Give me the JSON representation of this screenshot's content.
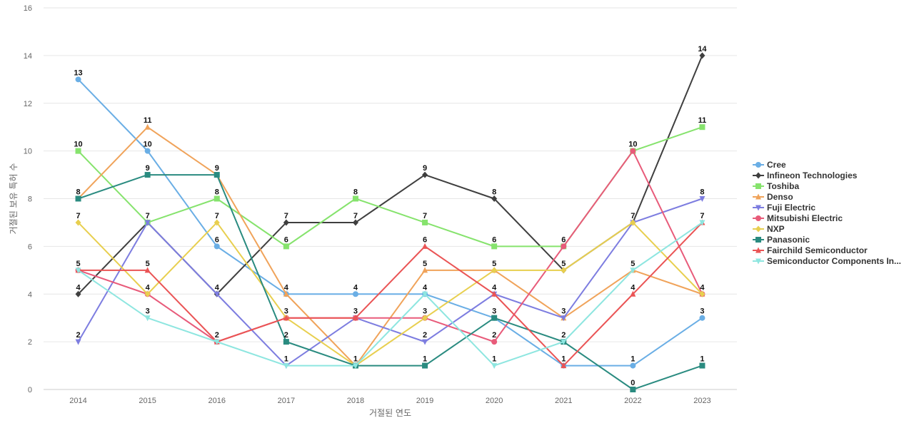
{
  "chart_data": {
    "type": "line",
    "xlabel": "거절된 연도",
    "ylabel": "거절된 보유 특허 수",
    "x": [
      "2014",
      "2015",
      "2016",
      "2017",
      "2018",
      "2019",
      "2020",
      "2021",
      "2022",
      "2023"
    ],
    "ylim": [
      0,
      16
    ],
    "yticks": [
      0,
      2,
      4,
      6,
      8,
      10,
      12,
      14,
      16
    ],
    "grid": true,
    "legend_position": "right",
    "series": [
      {
        "name": "Cree",
        "color": "#6aaee5",
        "marker": "circle",
        "values": [
          13,
          10,
          6,
          4,
          4,
          4,
          3,
          1,
          1,
          3
        ]
      },
      {
        "name": "Infineon Technologies",
        "color": "#3f3f3f",
        "marker": "diamond",
        "values": [
          4,
          7,
          4,
          7,
          7,
          9,
          8,
          5,
          7,
          14
        ]
      },
      {
        "name": "Toshiba",
        "color": "#86e36d",
        "marker": "square",
        "values": [
          10,
          7,
          8,
          6,
          8,
          7,
          6,
          6,
          10,
          11
        ]
      },
      {
        "name": "Denso",
        "color": "#f0a35a",
        "marker": "triangle-up",
        "values": [
          8,
          11,
          9,
          4,
          1,
          5,
          5,
          3,
          5,
          4
        ]
      },
      {
        "name": "Fuji Electric",
        "color": "#7d7de0",
        "marker": "triangle-down",
        "values": [
          2,
          7,
          4,
          1,
          3,
          2,
          4,
          3,
          7,
          8
        ]
      },
      {
        "name": "Mitsubishi Electric",
        "color": "#e85b7a",
        "marker": "circle",
        "values": [
          5,
          4,
          2,
          3,
          3,
          3,
          2,
          6,
          10,
          4
        ]
      },
      {
        "name": "NXP",
        "color": "#e8cf4f",
        "marker": "diamond",
        "values": [
          7,
          4,
          7,
          3,
          1,
          3,
          5,
          5,
          7,
          4
        ]
      },
      {
        "name": "Panasonic",
        "color": "#2a8b80",
        "marker": "square",
        "values": [
          8,
          9,
          9,
          2,
          1,
          1,
          3,
          2,
          0,
          1
        ]
      },
      {
        "name": "Fairchild Semiconductor",
        "color": "#ea5455",
        "marker": "triangle-up",
        "values": [
          5,
          5,
          2,
          3,
          3,
          6,
          4,
          1,
          4,
          7
        ]
      },
      {
        "name": "Semiconductor Components In...",
        "color": "#8ee6e0",
        "marker": "triangle-down",
        "values": [
          5,
          3,
          2,
          1,
          1,
          4,
          1,
          2,
          5,
          7
        ]
      }
    ],
    "data_labels": [
      {
        "x": "2014",
        "value": 13
      },
      {
        "x": "2014",
        "value": 10
      },
      {
        "x": "2014",
        "value": 8
      },
      {
        "x": "2014",
        "value": 7
      },
      {
        "x": "2014",
        "value": 5
      },
      {
        "x": "2014",
        "value": 4
      },
      {
        "x": "2014",
        "value": 2
      },
      {
        "x": "2015",
        "value": 11
      },
      {
        "x": "2015",
        "value": 10
      },
      {
        "x": "2015",
        "value": 9
      },
      {
        "x": "2015",
        "value": 7
      },
      {
        "x": "2015",
        "value": 5
      },
      {
        "x": "2015",
        "value": 4
      },
      {
        "x": "2015",
        "value": 3
      },
      {
        "x": "2016",
        "value": 9
      },
      {
        "x": "2016",
        "value": 8
      },
      {
        "x": "2016",
        "value": 7
      },
      {
        "x": "2016",
        "value": 6
      },
      {
        "x": "2016",
        "value": 4
      },
      {
        "x": "2016",
        "value": 2
      },
      {
        "x": "2017",
        "value": 7
      },
      {
        "x": "2017",
        "value": 6
      },
      {
        "x": "2017",
        "value": 4
      },
      {
        "x": "2017",
        "value": 3
      },
      {
        "x": "2017",
        "value": 2
      },
      {
        "x": "2017",
        "value": 1
      },
      {
        "x": "2018",
        "value": 8
      },
      {
        "x": "2018",
        "value": 7
      },
      {
        "x": "2018",
        "value": 4
      },
      {
        "x": "2018",
        "value": 3
      },
      {
        "x": "2018",
        "value": 1
      },
      {
        "x": "2019",
        "value": 9
      },
      {
        "x": "2019",
        "value": 7
      },
      {
        "x": "2019",
        "value": 6
      },
      {
        "x": "2019",
        "value": 5
      },
      {
        "x": "2019",
        "value": 4
      },
      {
        "x": "2019",
        "value": 3
      },
      {
        "x": "2019",
        "value": 2
      },
      {
        "x": "2019",
        "value": 1
      },
      {
        "x": "2020",
        "value": 8
      },
      {
        "x": "2020",
        "value": 6
      },
      {
        "x": "2020",
        "value": 5
      },
      {
        "x": "2020",
        "value": 4
      },
      {
        "x": "2020",
        "value": 3
      },
      {
        "x": "2020",
        "value": 2
      },
      {
        "x": "2020",
        "value": 1
      },
      {
        "x": "2021",
        "value": 6
      },
      {
        "x": "2021",
        "value": 5
      },
      {
        "x": "2021",
        "value": 3
      },
      {
        "x": "2021",
        "value": 2
      },
      {
        "x": "2021",
        "value": 1
      },
      {
        "x": "2022",
        "value": 10
      },
      {
        "x": "2022",
        "value": 7
      },
      {
        "x": "2022",
        "value": 5
      },
      {
        "x": "2022",
        "value": 4
      },
      {
        "x": "2022",
        "value": 1
      },
      {
        "x": "2022",
        "value": 0
      },
      {
        "x": "2023",
        "value": 14
      },
      {
        "x": "2023",
        "value": 11
      },
      {
        "x": "2023",
        "value": 8
      },
      {
        "x": "2023",
        "value": 7
      },
      {
        "x": "2023",
        "value": 4
      },
      {
        "x": "2023",
        "value": 3
      },
      {
        "x": "2023",
        "value": 1
      }
    ]
  }
}
